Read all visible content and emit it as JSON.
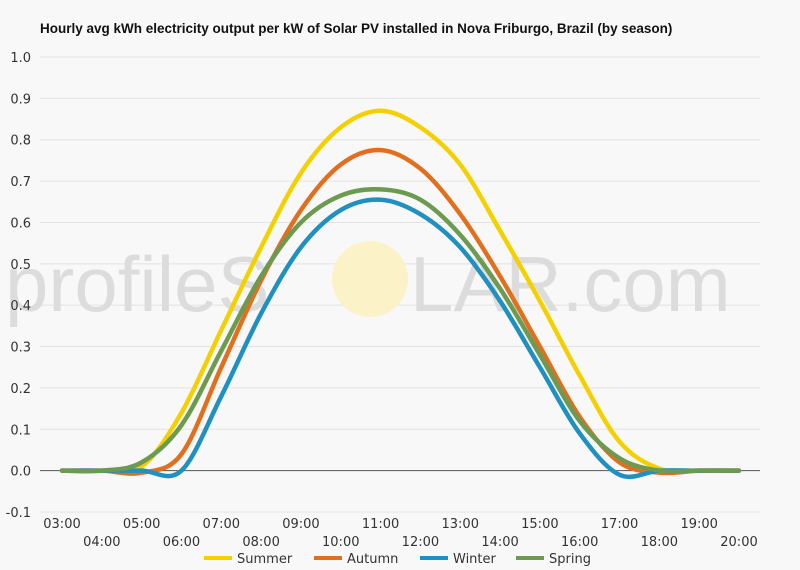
{
  "watermark": {
    "left": "profileS",
    "right": "LAR.com"
  },
  "chart_data": {
    "type": "line",
    "title": "Hourly avg kWh electricity output per kW of Solar PV installed in Nova Friburgo, Brazil (by season)",
    "xlabel": "",
    "ylabel": "",
    "ylim": [
      -0.1,
      1.0
    ],
    "yticks": [
      "-0.1",
      "0.0",
      "0.1",
      "0.2",
      "0.3",
      "0.4",
      "0.5",
      "0.6",
      "0.7",
      "0.8",
      "0.9",
      "1.0"
    ],
    "x": [
      "03:00",
      "04:00",
      "05:00",
      "06:00",
      "07:00",
      "08:00",
      "09:00",
      "10:00",
      "11:00",
      "12:00",
      "13:00",
      "14:00",
      "15:00",
      "16:00",
      "17:00",
      "18:00",
      "19:00",
      "20:00"
    ],
    "grid": true,
    "legend": "bottom",
    "series": [
      {
        "name": "Summer",
        "color": "#f5d000",
        "values": [
          0.0,
          0.0,
          0.01,
          0.14,
          0.34,
          0.54,
          0.72,
          0.83,
          0.87,
          0.83,
          0.74,
          0.58,
          0.41,
          0.23,
          0.07,
          0.005,
          0.0,
          0.0
        ]
      },
      {
        "name": "Autumn",
        "color": "#e07020",
        "values": [
          0.0,
          0.0,
          -0.005,
          0.04,
          0.25,
          0.46,
          0.63,
          0.74,
          0.775,
          0.73,
          0.62,
          0.47,
          0.3,
          0.13,
          0.02,
          -0.005,
          0.0,
          0.0
        ]
      },
      {
        "name": "Winter",
        "color": "#2090c0",
        "values": [
          0.0,
          0.0,
          0.0,
          0.0,
          0.18,
          0.38,
          0.54,
          0.63,
          0.655,
          0.62,
          0.54,
          0.41,
          0.25,
          0.09,
          -0.01,
          0.0,
          0.0,
          0.0
        ]
      },
      {
        "name": "Spring",
        "color": "#6b9a50",
        "values": [
          0.0,
          0.0,
          0.02,
          0.11,
          0.29,
          0.47,
          0.6,
          0.665,
          0.68,
          0.655,
          0.57,
          0.44,
          0.28,
          0.12,
          0.03,
          0.0,
          0.0,
          0.0
        ]
      }
    ]
  }
}
